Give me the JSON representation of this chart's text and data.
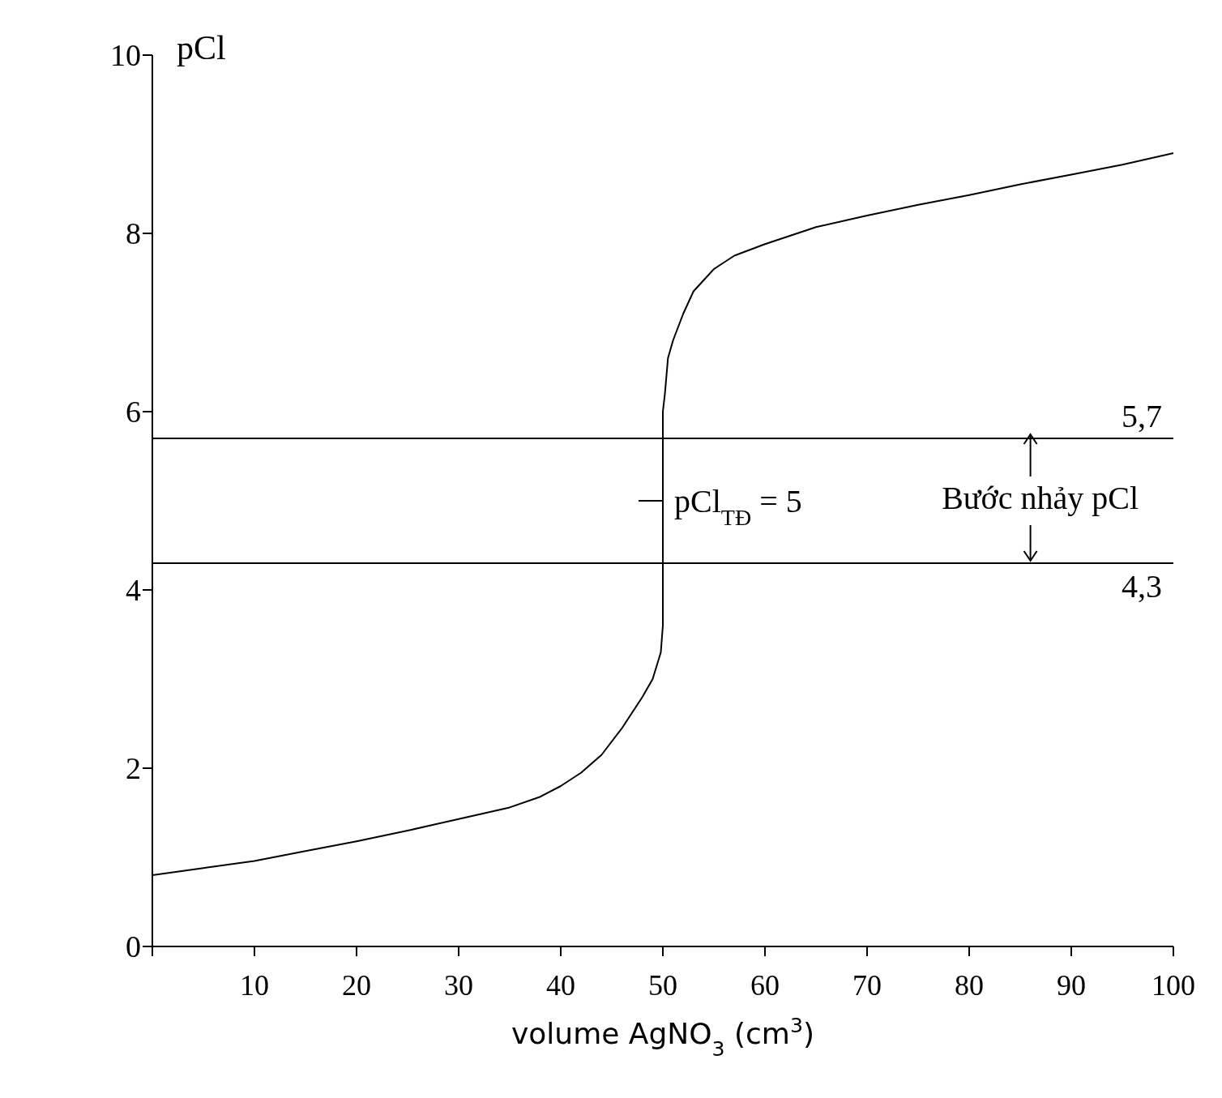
{
  "chart_data": {
    "type": "line",
    "xlabel": "volume AgNO$_{3}$ (cm$^{3}$)",
    "ylabel": "pCl",
    "x": [
      0,
      5,
      10,
      15,
      20,
      25,
      30,
      35,
      38,
      40,
      42,
      44,
      46,
      48,
      49,
      49.8,
      50,
      50,
      50,
      50.2,
      50.5,
      51,
      52,
      53,
      55,
      57,
      60,
      65,
      70,
      75,
      80,
      85,
      90,
      95,
      100
    ],
    "series": [
      {
        "color": "#000000",
        "values": [
          0.8,
          0.88,
          0.96,
          1.07,
          1.18,
          1.3,
          1.43,
          1.56,
          1.68,
          1.8,
          1.95,
          2.15,
          2.45,
          2.8,
          3.0,
          3.3,
          3.6,
          4.3,
          6.0,
          6.2,
          6.6,
          6.8,
          7.1,
          7.35,
          7.6,
          7.75,
          7.88,
          8.07,
          8.2,
          8.32,
          8.43,
          8.55,
          8.66,
          8.77,
          8.9
        ]
      }
    ],
    "xlim": [
      0,
      100
    ],
    "ylim": [
      0,
      10
    ],
    "xticks": [
      {
        "value": 0,
        "label": null
      },
      10,
      20,
      30,
      40,
      50,
      60,
      70,
      80,
      90,
      100
    ],
    "yticks": [
      0,
      2,
      4,
      6,
      8,
      10
    ],
    "marker": "none",
    "line_style": "solid",
    "ref_lines": [
      {
        "axis": "y",
        "value": 5.7,
        "label": "5,7",
        "color": "#000000"
      },
      {
        "axis": "y",
        "value": 4.3,
        "label": "4,3",
        "color": "#000000"
      }
    ],
    "annotations": [
      {
        "text": "pCl$_{TĐ}$ = 5",
        "x": 50,
        "y": 5
      },
      "Bước nhảy pCl"
    ]
  }
}
